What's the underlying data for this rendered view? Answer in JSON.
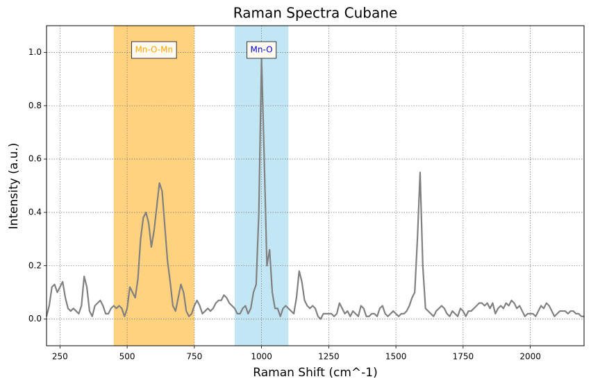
{
  "chart_data": {
    "type": "line",
    "title": "Raman Spectra Cubane",
    "x_label": "Raman Shift (cm^-1)",
    "y_label": "Intensity (a.u.)",
    "xlim": [
      200,
      2200
    ],
    "ylim": [
      -0.1,
      1.1
    ],
    "xticks": [
      250,
      500,
      750,
      1000,
      1250,
      1500,
      1750,
      2000
    ],
    "yticks": [
      {
        "value": 0,
        "label": "0.0"
      },
      0.2,
      0.4,
      0.6,
      0.8,
      {
        "value": 1,
        "label": "1.0"
      }
    ],
    "grid": true,
    "color": "gray",
    "spans": [
      {
        "label": "Mn-O-Mn",
        "start": 450,
        "end": 750,
        "color": "orange",
        "text_color": "orange"
      },
      {
        "label": "Mn-O",
        "start": 900,
        "end": 1100,
        "color": "skyblue",
        "text_color": "mediumblue"
      }
    ],
    "x": [
      200,
      210,
      220,
      230,
      240,
      250,
      260,
      270,
      280,
      290,
      300,
      310,
      320,
      330,
      340,
      350,
      360,
      370,
      380,
      390,
      400,
      410,
      420,
      430,
      440,
      450,
      460,
      470,
      480,
      490,
      500,
      510,
      520,
      530,
      540,
      550,
      560,
      570,
      580,
      590,
      600,
      610,
      620,
      630,
      640,
      650,
      660,
      670,
      680,
      690,
      700,
      710,
      720,
      730,
      740,
      750,
      760,
      770,
      780,
      790,
      800,
      810,
      820,
      830,
      840,
      850,
      860,
      870,
      880,
      890,
      900,
      910,
      920,
      930,
      940,
      950,
      960,
      970,
      980,
      990,
      1000,
      1010,
      1020,
      1030,
      1040,
      1050,
      1060,
      1070,
      1080,
      1090,
      1100,
      1110,
      1120,
      1130,
      1140,
      1150,
      1160,
      1170,
      1180,
      1190,
      1200,
      1210,
      1220,
      1230,
      1240,
      1250,
      1260,
      1270,
      1280,
      1290,
      1300,
      1310,
      1320,
      1330,
      1340,
      1350,
      1360,
      1370,
      1380,
      1390,
      1400,
      1410,
      1420,
      1430,
      1440,
      1450,
      1460,
      1470,
      1480,
      1490,
      1500,
      1510,
      1520,
      1530,
      1540,
      1550,
      1560,
      1570,
      1580,
      1590,
      1600,
      1610,
      1620,
      1630,
      1640,
      1650,
      1660,
      1670,
      1680,
      1690,
      1700,
      1710,
      1720,
      1730,
      1740,
      1750,
      1760,
      1770,
      1780,
      1790,
      1800,
      1810,
      1820,
      1830,
      1840,
      1850,
      1860,
      1870,
      1880,
      1890,
      1900,
      1910,
      1920,
      1930,
      1940,
      1950,
      1960,
      1970,
      1980,
      1990,
      2000,
      2010,
      2020,
      2030,
      2040,
      2050,
      2060,
      2070,
      2080,
      2090,
      2100,
      2110,
      2120,
      2130,
      2140,
      2150,
      2160,
      2170,
      2180,
      2190,
      2200
    ],
    "values": [
      0.01,
      0.05,
      0.12,
      0.13,
      0.1,
      0.12,
      0.14,
      0.08,
      0.04,
      0.03,
      0.04,
      0.03,
      0.02,
      0.05,
      0.16,
      0.12,
      0.03,
      0.01,
      0.05,
      0.06,
      0.07,
      0.05,
      0.02,
      0.02,
      0.04,
      0.05,
      0.04,
      0.05,
      0.04,
      0.01,
      0.04,
      0.12,
      0.1,
      0.08,
      0.15,
      0.3,
      0.38,
      0.4,
      0.36,
      0.27,
      0.33,
      0.42,
      0.51,
      0.48,
      0.35,
      0.22,
      0.14,
      0.05,
      0.03,
      0.08,
      0.13,
      0.1,
      0.03,
      0.01,
      0.02,
      0.05,
      0.07,
      0.05,
      0.02,
      0.03,
      0.04,
      0.03,
      0.04,
      0.06,
      0.07,
      0.07,
      0.09,
      0.08,
      0.06,
      0.05,
      0.04,
      0.02,
      0.02,
      0.04,
      0.05,
      0.02,
      0.04,
      0.1,
      0.13,
      0.4,
      0.98,
      0.6,
      0.2,
      0.26,
      0.1,
      0.04,
      0.04,
      0.01,
      0.04,
      0.05,
      0.04,
      0.03,
      0.02,
      0.08,
      0.18,
      0.14,
      0.07,
      0.05,
      0.04,
      0.05,
      0.04,
      0.01,
      0.0,
      0.02,
      0.02,
      0.02,
      0.02,
      0.01,
      0.02,
      0.06,
      0.04,
      0.02,
      0.03,
      0.01,
      0.03,
      0.02,
      0.01,
      0.05,
      0.04,
      0.01,
      0.01,
      0.02,
      0.02,
      0.01,
      0.04,
      0.05,
      0.02,
      0.01,
      0.02,
      0.03,
      0.02,
      0.01,
      0.02,
      0.02,
      0.03,
      0.05,
      0.08,
      0.1,
      0.3,
      0.55,
      0.2,
      0.04,
      0.03,
      0.02,
      0.01,
      0.03,
      0.04,
      0.05,
      0.04,
      0.02,
      0.01,
      0.03,
      0.02,
      0.01,
      0.04,
      0.03,
      0.01,
      0.03,
      0.03,
      0.04,
      0.05,
      0.06,
      0.06,
      0.05,
      0.06,
      0.04,
      0.06,
      0.02,
      0.04,
      0.05,
      0.04,
      0.06,
      0.05,
      0.07,
      0.06,
      0.04,
      0.05,
      0.03,
      0.01,
      0.02,
      0.02,
      0.02,
      0.01,
      0.03,
      0.05,
      0.04,
      0.06,
      0.05,
      0.03,
      0.01,
      0.02,
      0.03,
      0.03,
      0.03,
      0.02,
      0.03,
      0.03,
      0.02,
      0.02,
      0.01,
      0.01
    ]
  }
}
